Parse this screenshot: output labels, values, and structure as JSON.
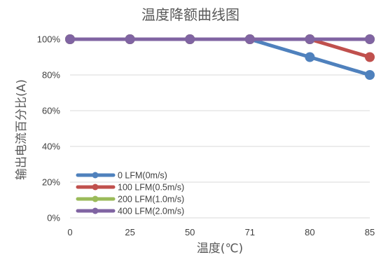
{
  "chart_data": {
    "type": "line",
    "title": "温度降额曲线图",
    "xlabel": "温度(℃)",
    "ylabel": "输出电流百分比(A)",
    "x": [
      "0",
      "25",
      "50",
      "71",
      "80",
      "85"
    ],
    "ylim": [
      0,
      100
    ],
    "yticks": [
      "0%",
      "20%",
      "40%",
      "60%",
      "80%",
      "100%"
    ],
    "grid": true,
    "legend_position": "bottom-left",
    "series": [
      {
        "name": "0 LFM(0m/s)",
        "values": [
          100,
          100,
          100,
          100,
          90,
          80
        ],
        "color": "#4f81bd"
      },
      {
        "name": "100 LFM(0.5m/s)",
        "values": [
          100,
          100,
          100,
          100,
          100,
          90
        ],
        "color": "#c0504d"
      },
      {
        "name": "200 LFM(1.0m/s)",
        "values": [
          100,
          100,
          100,
          100,
          100,
          100
        ],
        "color": "#9bbb59"
      },
      {
        "name": "400 LFM(2.0m/s)",
        "values": [
          100,
          100,
          100,
          100,
          100,
          100
        ],
        "color": "#8064a2"
      }
    ]
  }
}
